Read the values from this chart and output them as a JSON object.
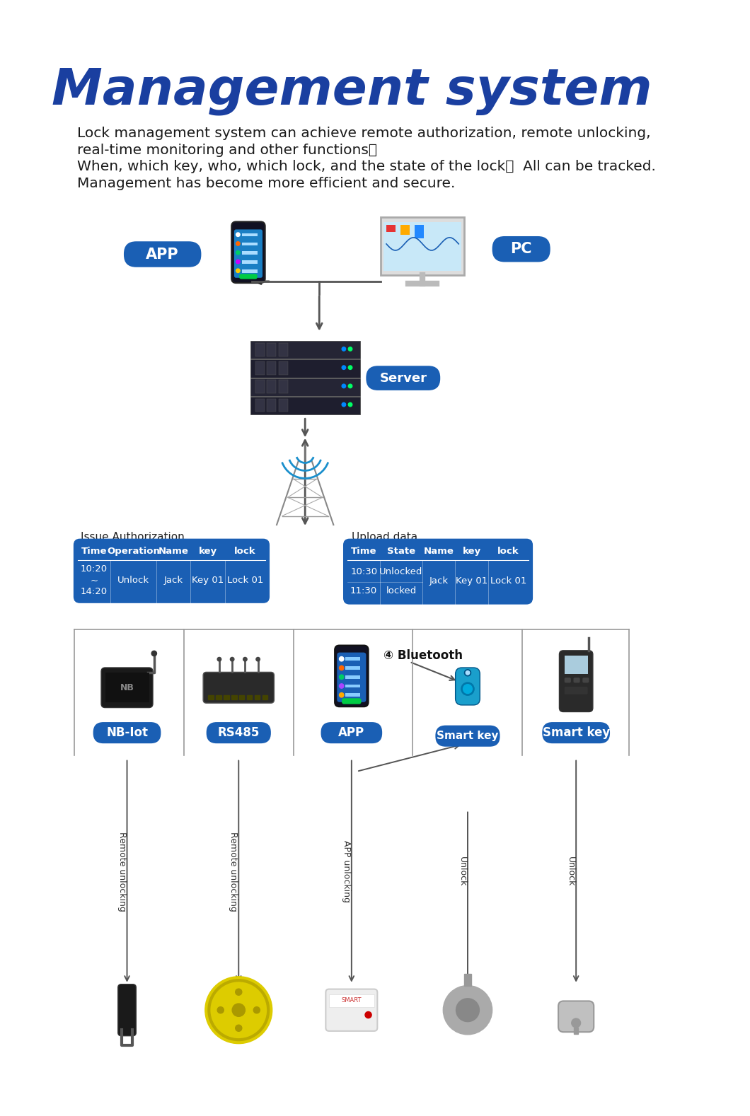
{
  "title": "Management system",
  "title_color": "#1a3fa0",
  "title_fontsize": 52,
  "bg_color": "#ffffff",
  "body_text_lines": [
    "Lock management system can achieve remote authorization, remote unlocking,",
    "real-time monitoring and other functions。",
    "When, which key, who, which lock, and the state of the lock，  All can be tracked.",
    "Management has become more efficient and secure."
  ],
  "body_fontsize": 14.5,
  "body_color": "#1a1a1a",
  "blue": "#1a5fb4",
  "white": "#ffffff",
  "arrow_color": "#555555",
  "issue_auth_label": "Issue Authorization",
  "upload_data_label": "Upload data",
  "table1_headers": [
    "Time",
    "Operation",
    "Name",
    "key",
    "lock"
  ],
  "table2_headers": [
    "Time",
    "State",
    "Name",
    "key",
    "lock"
  ],
  "bottom_labels": [
    "NB-Iot",
    "RS485",
    "APP",
    "Smart key"
  ],
  "bluetooth_label": "④Bluetooth",
  "smart_key_label": "Smart key",
  "arrow_labels": [
    "Remote unlocking",
    "Remote unlocking",
    "APP unlocking",
    "Unlock",
    "Unlock"
  ]
}
